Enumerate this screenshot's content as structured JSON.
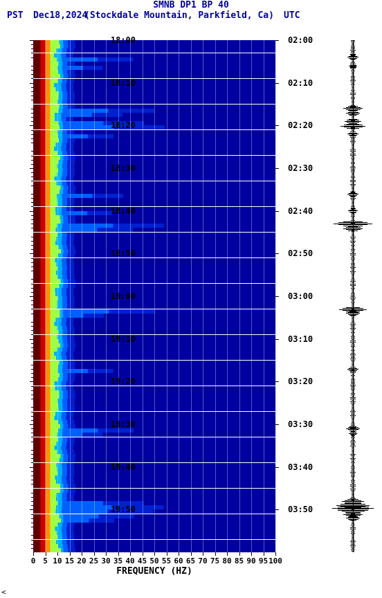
{
  "header": {
    "title": "SMNB DP1 BP 40",
    "left_tz": "PST",
    "date": "Dec18,2024",
    "location": "(Stockdale Mountain, Parkfield, Ca)",
    "right_tz": "UTC"
  },
  "axes": {
    "x": {
      "title": "FREQUENCY (HZ)",
      "ticks": [
        0,
        5,
        10,
        15,
        20,
        25,
        30,
        35,
        40,
        45,
        50,
        55,
        60,
        65,
        70,
        75,
        80,
        85,
        90,
        95,
        100
      ],
      "min": 0,
      "max": 100
    },
    "left_y": {
      "labels": [
        "18:00",
        "18:10",
        "18:20",
        "18:30",
        "18:40",
        "18:50",
        "19:00",
        "19:10",
        "19:20",
        "19:30",
        "19:40",
        "19:50"
      ],
      "positions_pct": [
        0,
        8.33,
        16.67,
        25,
        33.33,
        41.67,
        50,
        58.33,
        66.67,
        75,
        83.33,
        91.67
      ]
    },
    "right_y": {
      "labels": [
        "02:00",
        "02:10",
        "02:20",
        "02:30",
        "02:40",
        "02:50",
        "03:00",
        "03:10",
        "03:20",
        "03:30",
        "03:40",
        "03:50"
      ],
      "positions_pct": [
        0,
        8.33,
        16.67,
        25,
        33.33,
        41.67,
        50,
        58.33,
        66.67,
        75,
        83.33,
        91.67
      ]
    }
  },
  "colors": {
    "background": "#ffffff",
    "title_text": "#000099",
    "axis_text": "#000000",
    "colormap": [
      "#600000",
      "#a00000",
      "#d00000",
      "#ff3000",
      "#ff9000",
      "#ffe000",
      "#a0ff40",
      "#00ffe0",
      "#00b0ff",
      "#0060ff",
      "#0020d0",
      "#0000a0"
    ],
    "seismo": "#000000"
  },
  "spectrogram": {
    "n_rows": 120,
    "base_widths_pct": [
      3,
      2,
      2,
      3,
      2,
      2,
      3,
      80
    ],
    "base_color_idx": [
      0,
      2,
      4,
      6,
      8,
      9,
      10,
      11
    ],
    "events": [
      {
        "row": 4,
        "intensity": 0.7
      },
      {
        "row": 6,
        "intensity": 0.4
      },
      {
        "row": 16,
        "intensity": 0.9
      },
      {
        "row": 17,
        "intensity": 0.6
      },
      {
        "row": 19,
        "intensity": 0.8
      },
      {
        "row": 20,
        "intensity": 1.0
      },
      {
        "row": 22,
        "intensity": 0.5
      },
      {
        "row": 36,
        "intensity": 0.6
      },
      {
        "row": 40,
        "intensity": 0.5
      },
      {
        "row": 43,
        "intensity": 1.0
      },
      {
        "row": 44,
        "intensity": 0.7
      },
      {
        "row": 63,
        "intensity": 0.9
      },
      {
        "row": 64,
        "intensity": 0.4
      },
      {
        "row": 77,
        "intensity": 0.5
      },
      {
        "row": 91,
        "intensity": 0.7
      },
      {
        "row": 92,
        "intensity": 0.4
      },
      {
        "row": 108,
        "intensity": 0.8
      },
      {
        "row": 109,
        "intensity": 1.0
      },
      {
        "row": 110,
        "intensity": 0.9
      },
      {
        "row": 111,
        "intensity": 0.7
      },
      {
        "row": 112,
        "intensity": 0.5
      }
    ]
  },
  "seismogram": {
    "baseline_noise": 3,
    "events": [
      {
        "pos_pct": 3.3,
        "amp": 8
      },
      {
        "pos_pct": 5.0,
        "amp": 6
      },
      {
        "pos_pct": 13.3,
        "amp": 14
      },
      {
        "pos_pct": 14.2,
        "amp": 10
      },
      {
        "pos_pct": 15.8,
        "amp": 12
      },
      {
        "pos_pct": 16.7,
        "amp": 18
      },
      {
        "pos_pct": 18.3,
        "amp": 8
      },
      {
        "pos_pct": 30.0,
        "amp": 8
      },
      {
        "pos_pct": 33.3,
        "amp": 7
      },
      {
        "pos_pct": 35.8,
        "amp": 28
      },
      {
        "pos_pct": 36.7,
        "amp": 14
      },
      {
        "pos_pct": 52.5,
        "amp": 20
      },
      {
        "pos_pct": 53.3,
        "amp": 10
      },
      {
        "pos_pct": 64.2,
        "amp": 8
      },
      {
        "pos_pct": 75.8,
        "amp": 10
      },
      {
        "pos_pct": 76.7,
        "amp": 6
      },
      {
        "pos_pct": 90.0,
        "amp": 16
      },
      {
        "pos_pct": 90.8,
        "amp": 24
      },
      {
        "pos_pct": 91.3,
        "amp": 30
      },
      {
        "pos_pct": 91.7,
        "amp": 22
      },
      {
        "pos_pct": 92.5,
        "amp": 14
      },
      {
        "pos_pct": 93.3,
        "amp": 10
      }
    ]
  }
}
